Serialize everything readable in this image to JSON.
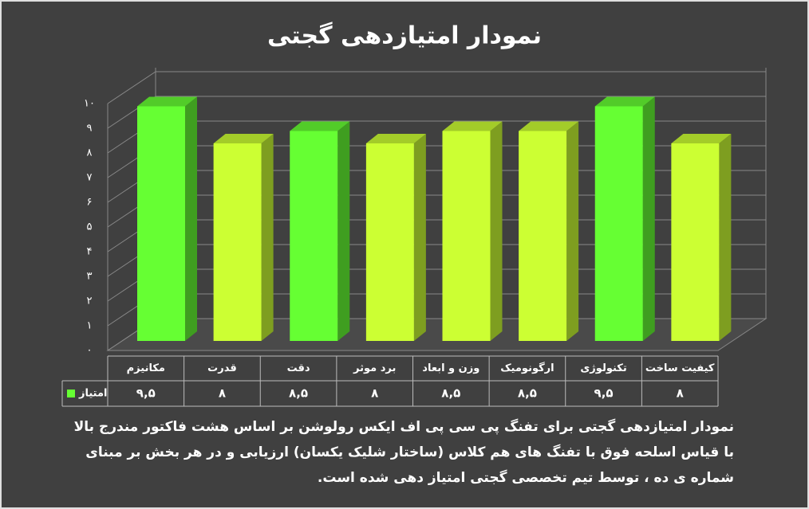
{
  "chart_data": {
    "type": "bar3d",
    "title": "نمودار امتیازدهی گجتی",
    "categories": [
      "مکانیزم",
      "قدرت",
      "دقت",
      "برد موثر",
      "وزن و ابعاد",
      "ارگونومیک",
      "تکنولوژی",
      "کیفیت ساخت"
    ],
    "series": [
      {
        "name": "امتیاز",
        "color": "#66ff33",
        "colors": [
          "#66ff33",
          "#ccff33",
          "#66ff33",
          "#ccff33",
          "#ccff33",
          "#ccff33",
          "#66ff33",
          "#ccff33"
        ],
        "values": [
          9.5,
          8,
          8.5,
          8,
          8.5,
          8.5,
          9.5,
          8
        ],
        "value_labels": [
          "۹,۵",
          "۸",
          "۸,۵",
          "۸",
          "۸,۵",
          "۸,۵",
          "۹,۵",
          "۸"
        ]
      }
    ],
    "ylim": [
      0,
      10
    ],
    "yticks": [
      {
        "value": 0,
        "label": "۰"
      },
      {
        "value": 1,
        "label": "۱"
      },
      {
        "value": 2,
        "label": "۲"
      },
      {
        "value": 3,
        "label": "۳"
      },
      {
        "value": 4,
        "label": "۴"
      },
      {
        "value": 5,
        "label": "۵"
      },
      {
        "value": 6,
        "label": "۶"
      },
      {
        "value": 7,
        "label": "۷"
      },
      {
        "value": 8,
        "label": "۸"
      },
      {
        "value": 9,
        "label": "۹"
      },
      {
        "value": 10,
        "label": "۱۰"
      }
    ],
    "grid": true,
    "caption": "نمودار امتیازدهی گجتی برای تفنگ پی سی پی اف ایکس رولوشن بر اساس هشت فاکتور مندرج بالا با قیاس اسلحه فوق با تفنگ های هم کلاس (ساختار شلیک یکسان) ارزیابی و در هر بخش بر مبنای شماره ی ده ، توسط تیم تخصصی گجتی امتیاز دهی شده است."
  }
}
